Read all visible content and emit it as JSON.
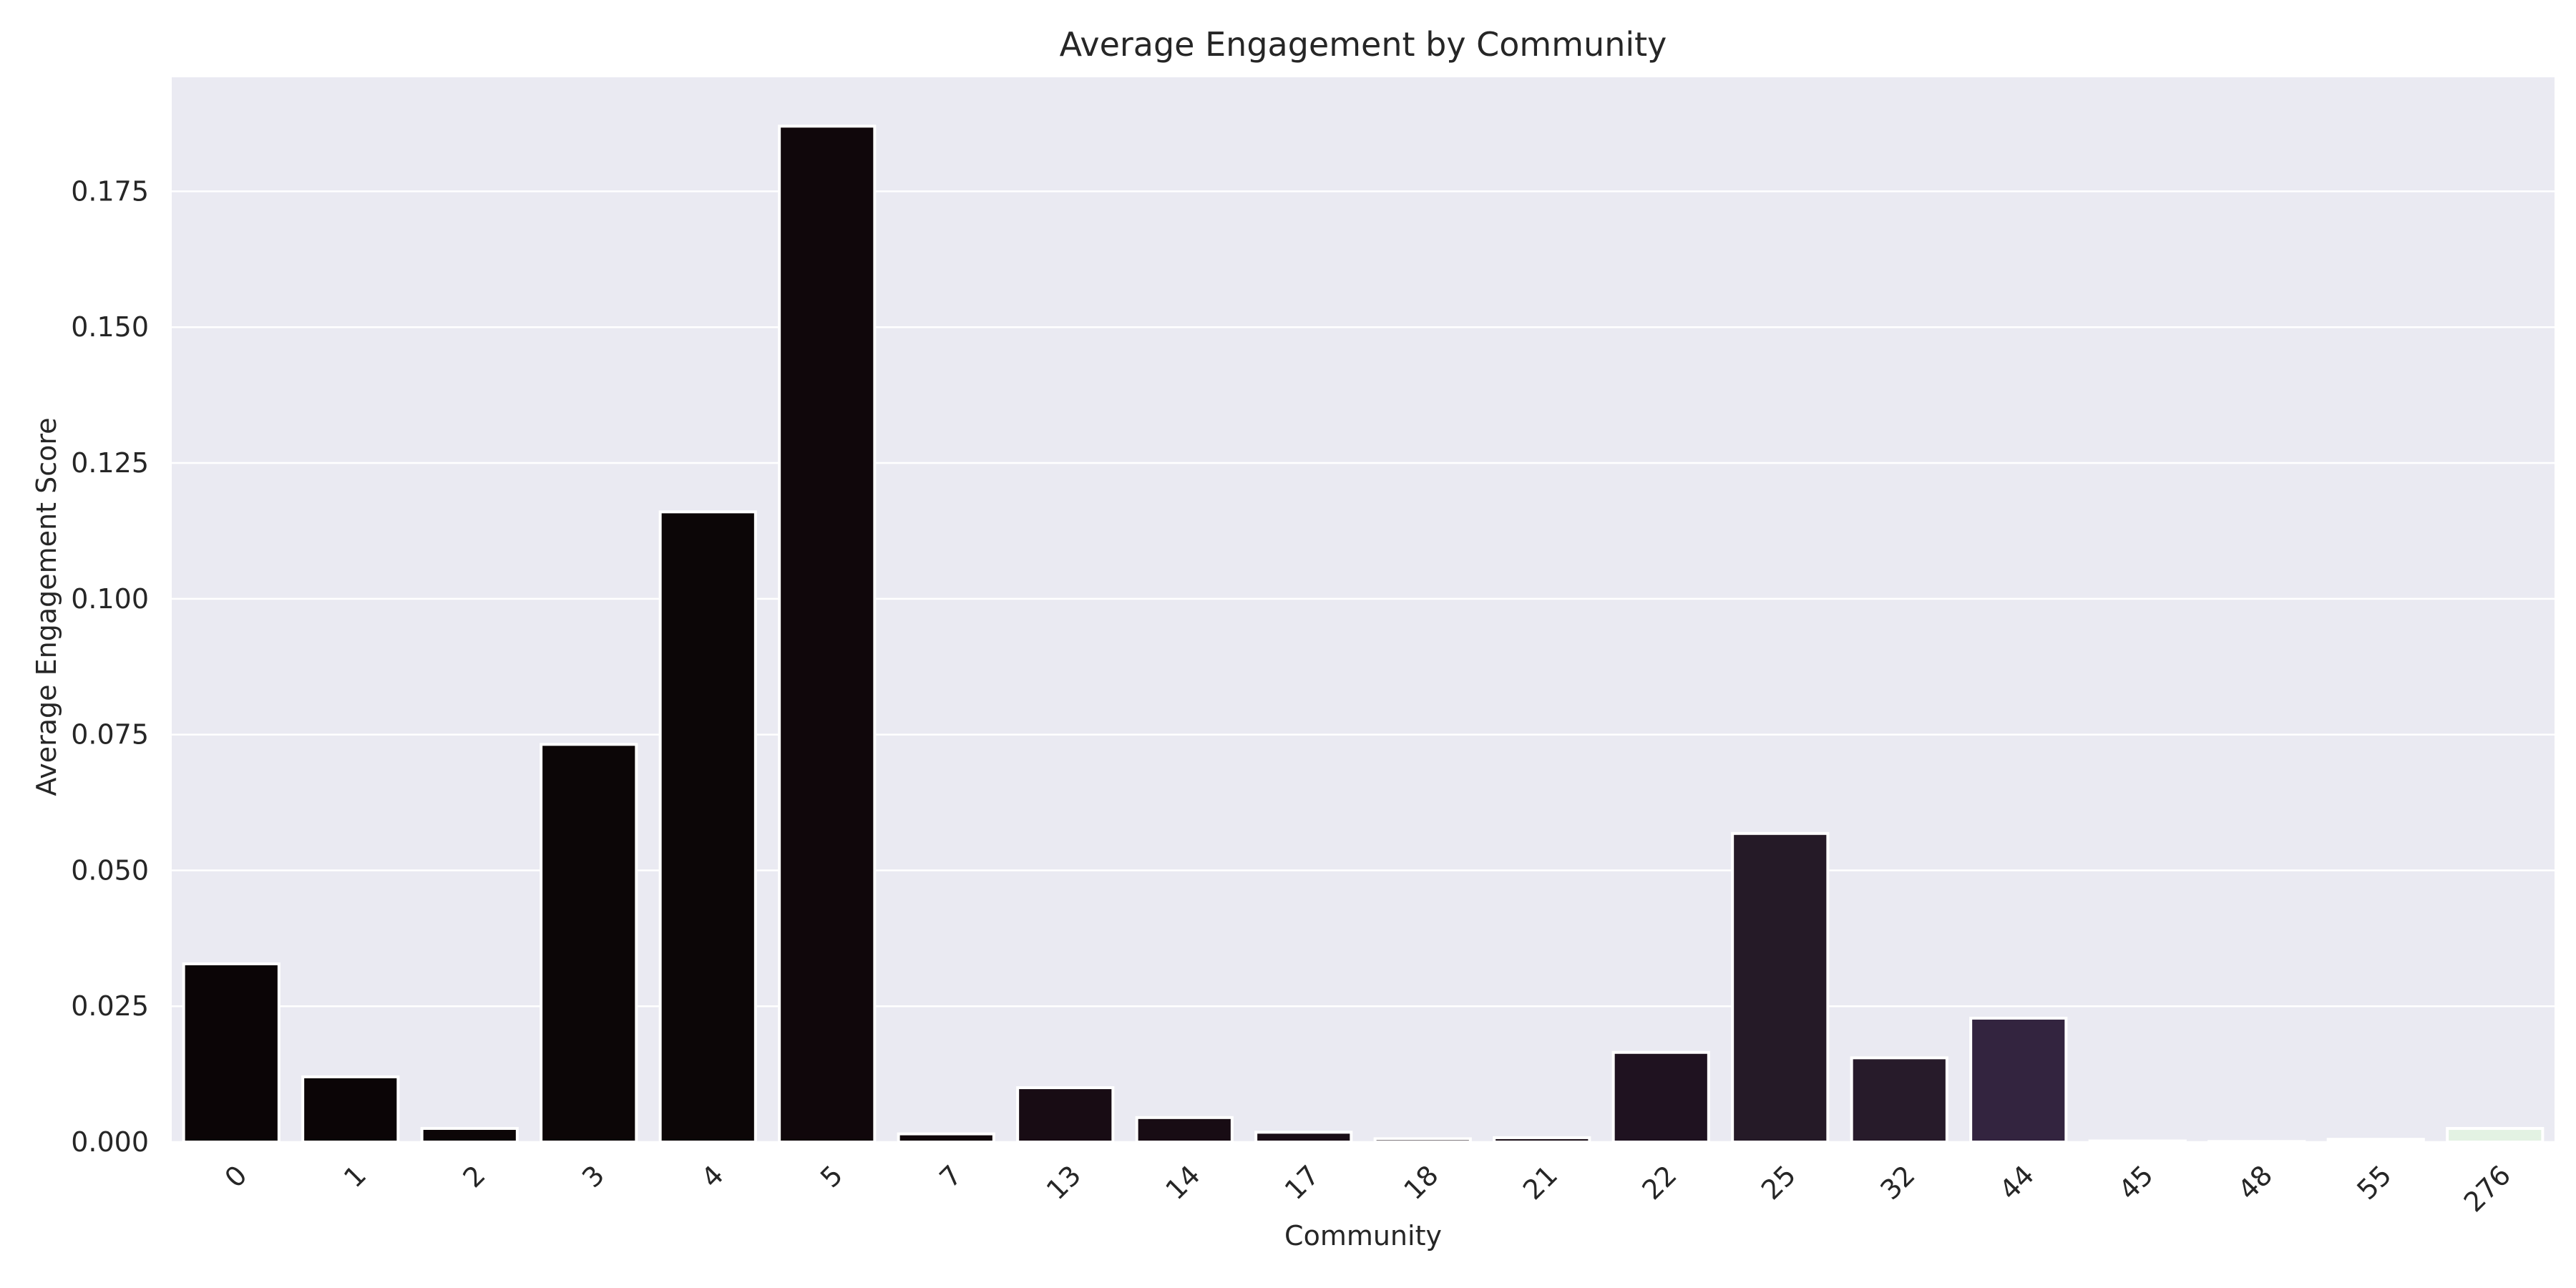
{
  "chart_data": {
    "type": "bar",
    "title": "Average Engagement by Community",
    "xlabel": "Community",
    "ylabel": "Average Engagement Score",
    "categories": [
      "0",
      "1",
      "2",
      "3",
      "4",
      "5",
      "7",
      "13",
      "14",
      "17",
      "18",
      "21",
      "22",
      "25",
      "32",
      "44",
      "45",
      "48",
      "55",
      "276"
    ],
    "values": [
      0.0328,
      0.012,
      0.0025,
      0.0732,
      0.116,
      0.187,
      0.0015,
      0.01,
      0.0045,
      0.0018,
      0.0006,
      0.0008,
      0.0165,
      0.0568,
      0.0155,
      0.0228,
      0.0002,
      0.0001,
      0.0005,
      0.0025
    ],
    "colors": [
      "#0b0506",
      "#0b0506",
      "#0c0607",
      "#0c0607",
      "#0c0607",
      "#10070b",
      "#10070b",
      "#180c14",
      "#180c14",
      "#1a0e16",
      "#1c1019",
      "#1d111a",
      "#1f1220",
      "#251a27",
      "#271b2a",
      "#33243f",
      "#f3f0f4",
      "#f3f0f4",
      "#eaf0ea",
      "#e3f2e3"
    ],
    "ylim": [
      0,
      0.196
    ],
    "yticks": [
      "0.000",
      "0.025",
      "0.050",
      "0.075",
      "0.100",
      "0.125",
      "0.150",
      "0.175"
    ],
    "ytick_values": [
      0,
      0.025,
      0.05,
      0.075,
      0.1,
      0.125,
      0.15,
      0.175
    ],
    "grid": true,
    "background": "#eaeaf2",
    "grid_color": "#ffffff"
  }
}
